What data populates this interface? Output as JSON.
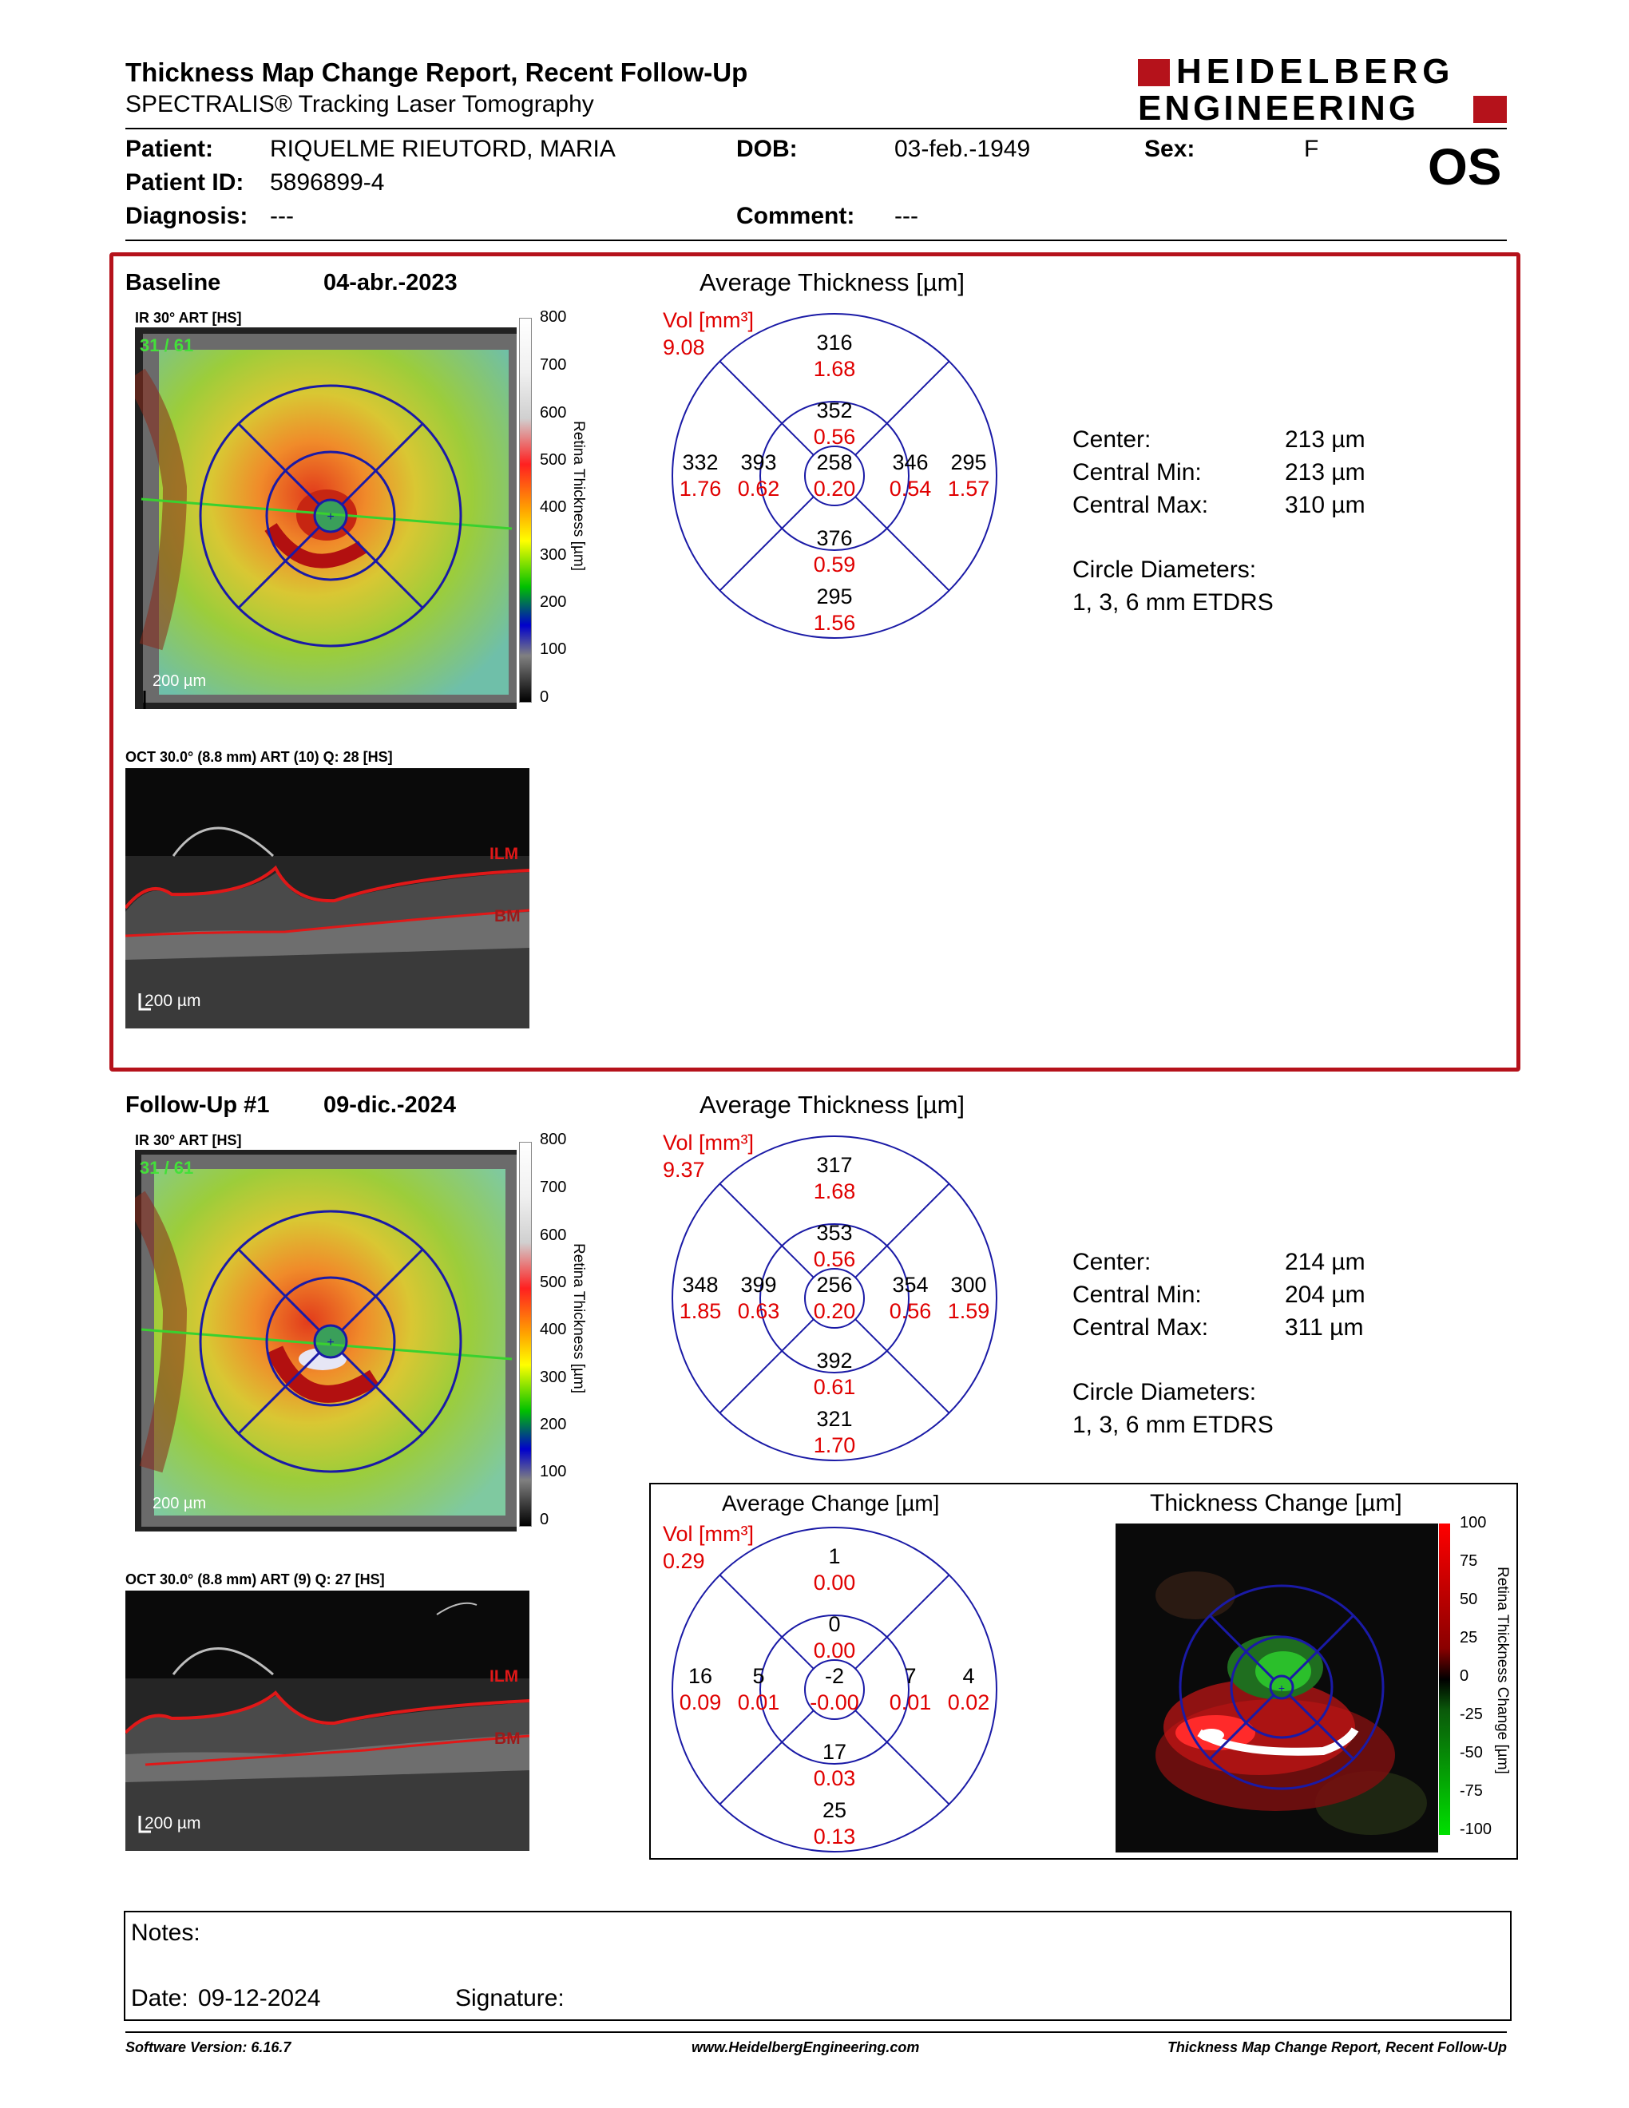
{
  "header": {
    "title": "Thickness Map Change Report, Recent Follow-Up",
    "subtitle": "SPECTRALIS® Tracking Laser Tomography",
    "logo_line1": "HEIDELBERG",
    "logo_line2": "ENGINEERING",
    "eye": "OS"
  },
  "patient": {
    "patient_label": "Patient:",
    "patient_name": "RIQUELME RIEUTORD, MARIA",
    "dob_label": "DOB:",
    "dob": "03-feb.-1949",
    "sex_label": "Sex:",
    "sex": "F",
    "id_label": "Patient ID:",
    "id": "5896899-4",
    "diagnosis_label": "Diagnosis:",
    "diagnosis": "---",
    "comment_label": "Comment:",
    "comment": "---"
  },
  "baseline": {
    "label": "Baseline",
    "date": "04-abr.-2023",
    "ir_caption": "IR 30° ART [HS]",
    "ir_overlay": "31 / 61",
    "ir_scale": "200 µm",
    "oct_caption": "OCT 30.0° (8.8 mm) ART (10) Q: 28 [HS]",
    "oct_scale": "200 µm",
    "avg_title": "Average Thickness [µm]",
    "vol_label": "Vol [mm³]",
    "vol_total": "9.08",
    "grid": {
      "outer_top": [
        "316",
        "1.68"
      ],
      "inner_top": [
        "352",
        "0.56"
      ],
      "outer_left": [
        "332",
        "1.76"
      ],
      "inner_left": [
        "393",
        "0.62"
      ],
      "center": [
        "258",
        "0.20"
      ],
      "inner_right": [
        "346",
        "0.54"
      ],
      "outer_right": [
        "295",
        "1.57"
      ],
      "inner_bottom": [
        "376",
        "0.59"
      ],
      "outer_bottom": [
        "295",
        "1.56"
      ]
    },
    "stats": {
      "center_label": "Center:",
      "center": "213 µm",
      "min_label": "Central Min:",
      "min": "213 µm",
      "max_label": "Central Max:",
      "max": "310 µm",
      "diam_label": "Circle Diameters:",
      "diam": "1, 3, 6 mm ETDRS"
    }
  },
  "followup": {
    "label": "Follow-Up #1",
    "date": "09-dic.-2024",
    "ir_caption": "IR 30° ART [HS]",
    "ir_overlay": "31 / 61",
    "ir_scale": "200 µm",
    "oct_caption": "OCT 30.0° (8.8 mm) ART (9) Q: 27 [HS]",
    "oct_scale": "200 µm",
    "avg_title": "Average Thickness [µm]",
    "vol_label": "Vol [mm³]",
    "vol_total": "9.37",
    "grid": {
      "outer_top": [
        "317",
        "1.68"
      ],
      "inner_top": [
        "353",
        "0.56"
      ],
      "outer_left": [
        "348",
        "1.85"
      ],
      "inner_left": [
        "399",
        "0.63"
      ],
      "center": [
        "256",
        "0.20"
      ],
      "inner_right": [
        "354",
        "0.56"
      ],
      "outer_right": [
        "300",
        "1.59"
      ],
      "inner_bottom": [
        "392",
        "0.61"
      ],
      "outer_bottom": [
        "321",
        "1.70"
      ]
    },
    "stats": {
      "center_label": "Center:",
      "center": "214 µm",
      "min_label": "Central Min:",
      "min": "204 µm",
      "max_label": "Central Max:",
      "max": "311 µm",
      "diam_label": "Circle Diameters:",
      "diam": "1, 3, 6 mm ETDRS"
    }
  },
  "change": {
    "avg_title": "Average Change [µm]",
    "vol_label": "Vol [mm³]",
    "vol_total": "0.29",
    "grid": {
      "outer_top": [
        "1",
        "0.00"
      ],
      "inner_top": [
        "0",
        "0.00"
      ],
      "outer_left": [
        "16",
        "0.09"
      ],
      "inner_left": [
        "5",
        "0.01"
      ],
      "center": [
        "-2",
        "-0.00"
      ],
      "inner_right": [
        "7",
        "0.01"
      ],
      "outer_right": [
        "4",
        "0.02"
      ],
      "inner_bottom": [
        "17",
        "0.03"
      ],
      "outer_bottom": [
        "25",
        "0.13"
      ]
    },
    "map_title": "Thickness Change [µm]",
    "scale_label": "Retina Thickness Change [µm]",
    "scale_ticks": [
      "100",
      "75",
      "50",
      "25",
      "0",
      "-25",
      "-50",
      "-75",
      "-100"
    ]
  },
  "thickness_scale": {
    "label": "Retina Thickness [µm]",
    "ticks": [
      "800",
      "700",
      "600",
      "500",
      "400",
      "300",
      "200",
      "100",
      "0"
    ]
  },
  "oct_labels": {
    "ilm": "ILM",
    "bm": "BM"
  },
  "notes": {
    "notes_label": "Notes:",
    "date_label": "Date:",
    "date": "09-12-2024",
    "signature_label": "Signature:"
  },
  "footer": {
    "software": "Software Version: 6.16.7",
    "url": "www.HeidelbergEngineering.com",
    "report": "Thickness Map Change Report, Recent Follow-Up"
  },
  "colors": {
    "brand_red": "#b5121b",
    "grid_blue": "#1a1aa6",
    "value_red": "#e00000"
  }
}
